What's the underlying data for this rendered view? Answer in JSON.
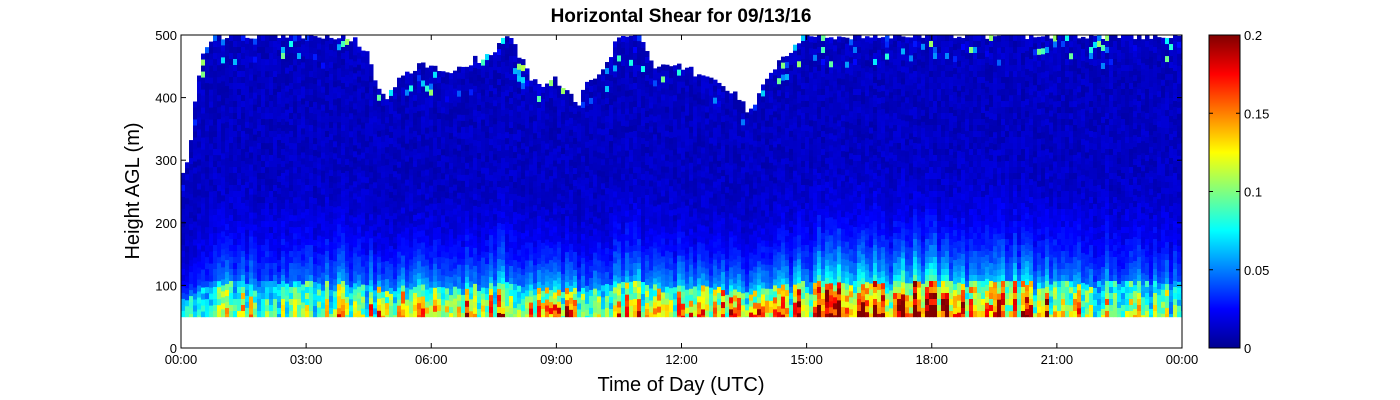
{
  "chart_data": {
    "type": "heatmap",
    "title": "Horizontal Shear for 09/13/16",
    "xlabel": "Time of Day (UTC)",
    "ylabel": "Height AGL (m)",
    "x_tick_labels": [
      "00:00",
      "03:00",
      "06:00",
      "09:00",
      "12:00",
      "15:00",
      "18:00",
      "21:00",
      "00:00"
    ],
    "x_tick_hours": [
      0,
      3,
      6,
      9,
      12,
      15,
      18,
      21,
      24
    ],
    "y_tick_labels": [
      "0",
      "100",
      "200",
      "300",
      "400",
      "500"
    ],
    "y_tick_values": [
      0,
      100,
      200,
      300,
      400,
      500
    ],
    "xlim_hours": [
      0,
      24
    ],
    "ylim": [
      0,
      500
    ],
    "colorbar": {
      "colormap": "jet",
      "clim": [
        0,
        0.2
      ],
      "tick_labels": [
        "0",
        "0.05",
        "0.1",
        "0.15",
        "0.2"
      ],
      "tick_values": [
        0,
        0.05,
        0.1,
        0.15,
        0.2
      ]
    },
    "min_height_m": 50,
    "data_top_profile": {
      "hours": [
        0.0,
        0.2,
        0.35,
        0.5,
        0.8,
        1.0,
        2.0,
        4.0,
        4.5,
        4.7,
        4.9,
        5.1,
        5.5,
        6.0,
        6.5,
        7.0,
        7.5,
        7.7,
        7.9,
        8.1,
        8.3,
        8.6,
        9.0,
        9.3,
        9.5,
        9.7,
        10.0,
        10.3,
        10.5,
        10.8,
        11.0,
        11.3,
        11.6,
        12.0,
        12.3,
        12.6,
        13.0,
        13.3,
        13.6,
        13.8,
        14.1,
        14.5,
        14.8,
        15.0,
        24.0
      ],
      "top_m": [
        270,
        300,
        400,
        460,
        500,
        500,
        500,
        500,
        470,
        420,
        400,
        420,
        445,
        455,
        440,
        460,
        465,
        500,
        500,
        470,
        440,
        420,
        430,
        410,
        385,
        420,
        440,
        470,
        500,
        500,
        500,
        455,
        445,
        450,
        440,
        435,
        415,
        410,
        375,
        395,
        435,
        470,
        490,
        500,
        500
      ]
    },
    "shear_intensity_by_hour": {
      "hours": [
        0,
        2,
        4,
        6,
        7,
        8,
        10,
        12,
        14,
        15,
        15.5,
        16,
        17,
        18,
        19,
        20,
        22,
        24
      ],
      "relative": [
        0.6,
        0.7,
        0.8,
        0.8,
        1.0,
        0.8,
        0.85,
        0.8,
        0.9,
        1.0,
        1.3,
        1.1,
        1.2,
        1.3,
        1.1,
        1.0,
        0.75,
        0.6
      ]
    }
  }
}
